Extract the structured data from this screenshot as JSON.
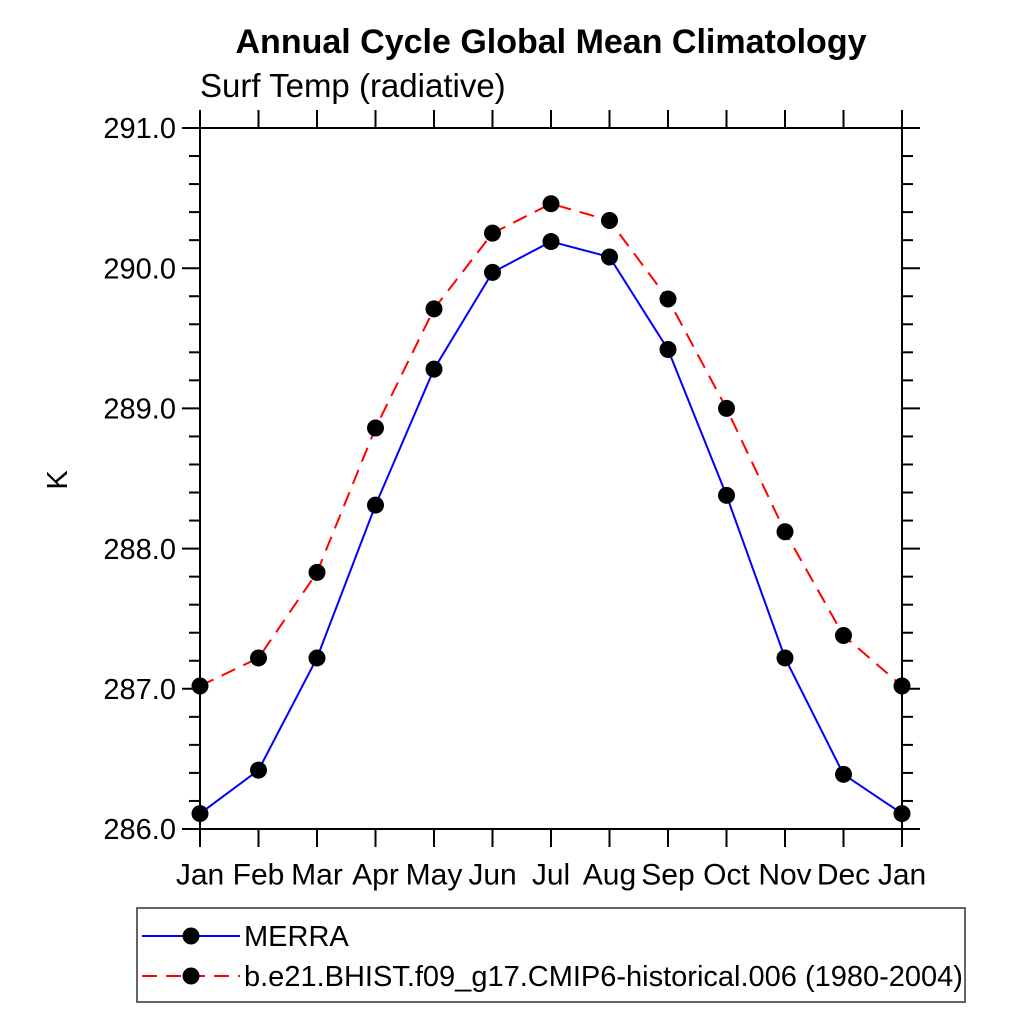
{
  "chart_data": {
    "type": "line",
    "title": "Annual Cycle Global Mean Climatology",
    "subtitle": "Surf Temp (radiative)",
    "ylabel": "K",
    "xlabel": "",
    "grid": false,
    "legend_position": "bottom-left",
    "ylim": [
      286.0,
      291.0
    ],
    "y_minor_step": 0.2,
    "y_major_ticks": [
      286.0,
      287.0,
      288.0,
      289.0,
      290.0,
      291.0
    ],
    "y_major_tick_labels": [
      "286.0",
      "287.0",
      "288.0",
      "289.0",
      "290.0",
      "291.0"
    ],
    "x_tick_labels": [
      "Jan",
      "Feb",
      "Mar",
      "Apr",
      "May",
      "Jun",
      "Jul",
      "Aug",
      "Sep",
      "Oct",
      "Nov",
      "Dec",
      "Jan"
    ],
    "series": [
      {
        "name": "MERRA",
        "color": "#0000ff",
        "line_style": "solid",
        "marker": "circle",
        "marker_color": "#000000",
        "values": [
          286.11,
          286.42,
          287.22,
          288.31,
          289.28,
          289.97,
          290.19,
          290.08,
          289.42,
          288.38,
          287.22,
          286.39,
          286.11
        ]
      },
      {
        "name": "b.e21.BHIST.f09_g17.CMIP6-historical.006 (1980-2004)",
        "color": "#ff0000",
        "line_style": "dashed",
        "marker": "circle",
        "marker_color": "#000000",
        "values": [
          287.02,
          287.22,
          287.83,
          288.86,
          289.71,
          290.25,
          290.46,
          290.34,
          289.78,
          289.0,
          288.12,
          287.38,
          287.02
        ]
      }
    ]
  }
}
